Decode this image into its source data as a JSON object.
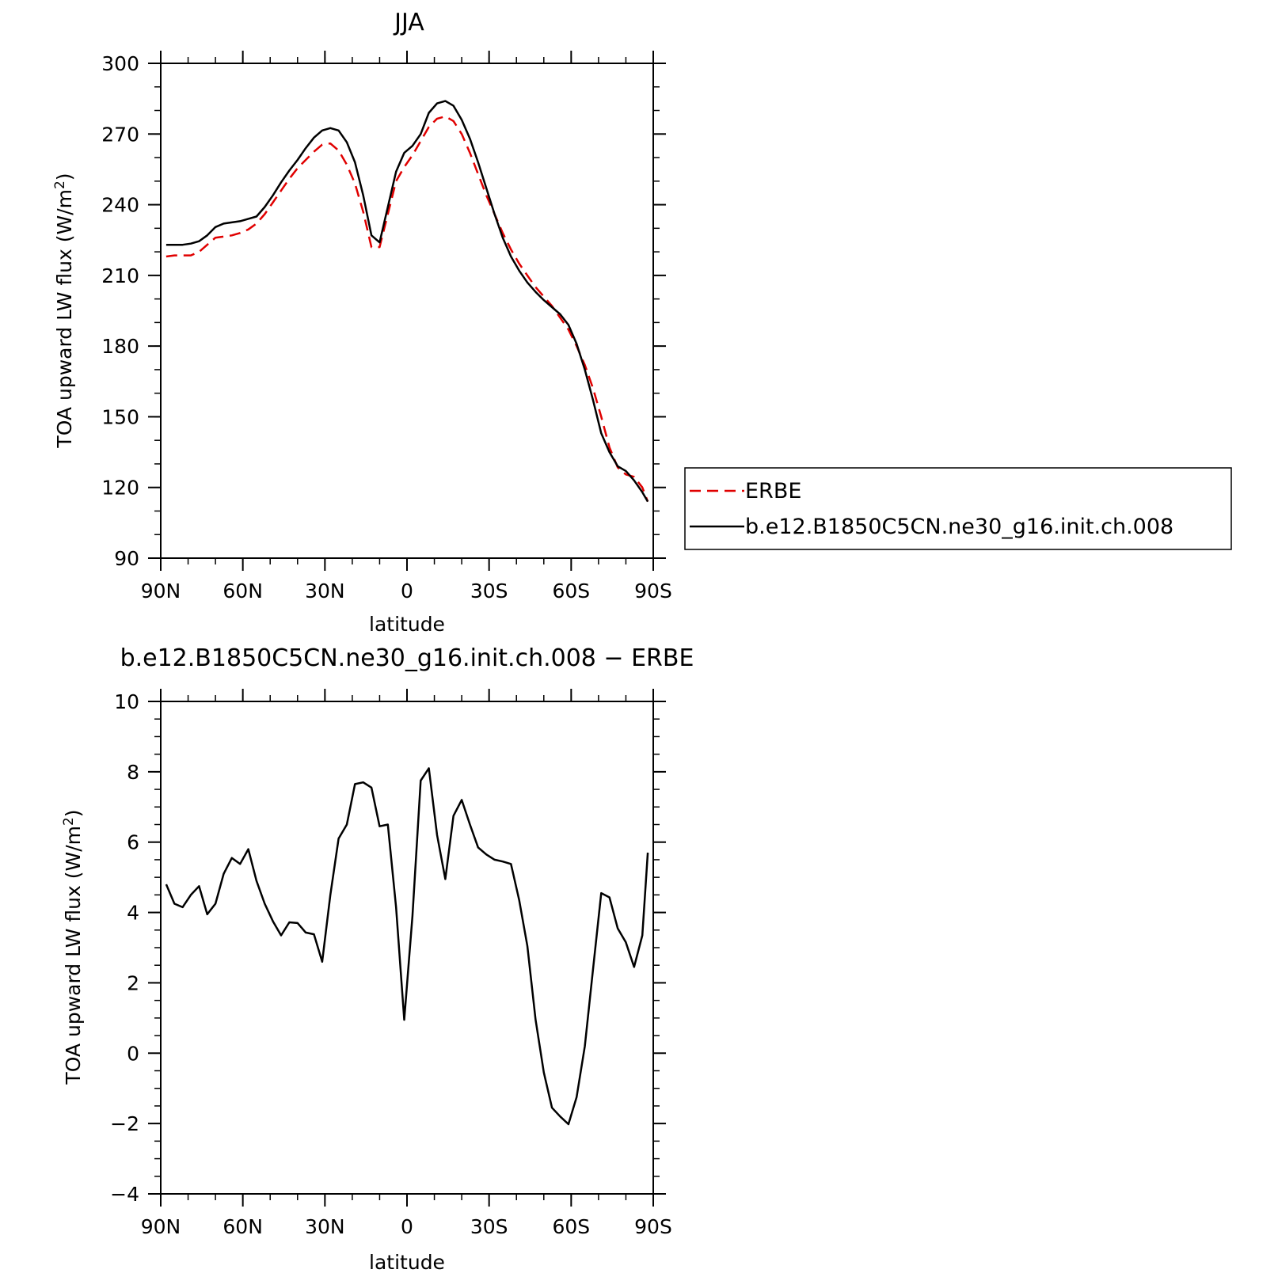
{
  "colors": {
    "erbe": "#e00000",
    "model": "#000000",
    "axis": "#000000"
  },
  "chart_data": [
    {
      "type": "line",
      "title": "JJA",
      "xlabel": "latitude",
      "ylabel": "TOA upward LW flux (W/m²)",
      "ylabel_main": "TOA upward LW flux (W/m",
      "ylabel_sup": "2",
      "ylabel_end": ")",
      "xlim": [
        90,
        -90
      ],
      "ylim": [
        90,
        300
      ],
      "x_ticks": [
        90,
        60,
        30,
        0,
        -30,
        -60,
        -90
      ],
      "x_tick_labels": [
        "90N",
        "60N",
        "30N",
        "0",
        "30S",
        "60S",
        "90S"
      ],
      "y_ticks": [
        90,
        120,
        150,
        180,
        210,
        240,
        270,
        300
      ],
      "y_tick_labels": [
        "90",
        "120",
        "150",
        "180",
        "210",
        "240",
        "270",
        "300"
      ],
      "legend_position": "right",
      "series": [
        {
          "name": "ERBE",
          "style": "dashed",
          "color": "#e00000",
          "x": [
            88,
            85,
            82,
            79,
            76,
            73,
            70,
            67,
            64,
            61,
            58,
            55,
            52,
            49,
            46,
            43,
            40,
            37,
            34,
            31,
            28,
            25,
            22,
            19,
            16,
            13,
            10,
            7,
            4,
            1,
            -2,
            -5,
            -8,
            -11,
            -14,
            -17,
            -20,
            -23,
            -26,
            -29,
            -32,
            -35,
            -38,
            -41,
            -44,
            -47,
            -50,
            -53,
            -56,
            -59,
            -62,
            -65,
            -68,
            -71,
            -74,
            -77,
            -80,
            -83,
            -86,
            -88
          ],
          "y": [
            218,
            218.5,
            218.5,
            218.5,
            220,
            223,
            226,
            226.5,
            227,
            228,
            229.5,
            232,
            236,
            241,
            246,
            251,
            255.5,
            259,
            262.5,
            265.5,
            266,
            263,
            257,
            249,
            237,
            222,
            222,
            236,
            250,
            256,
            261,
            267,
            273,
            276.5,
            277.5,
            275.5,
            270,
            262,
            253,
            244,
            236,
            228,
            221,
            215,
            210,
            205,
            201,
            197,
            192,
            187,
            180,
            172,
            162,
            150,
            137,
            128.5,
            125.5,
            124.5,
            120,
            114
          ]
        },
        {
          "name": "b.e12.B1850C5CN.ne30_g16.init.ch.008",
          "style": "solid",
          "color": "#000000",
          "x": [
            88,
            85,
            82,
            79,
            76,
            73,
            70,
            67,
            64,
            61,
            58,
            55,
            52,
            49,
            46,
            43,
            40,
            37,
            34,
            31,
            28,
            25,
            22,
            19,
            16,
            13,
            10,
            7,
            4,
            1,
            -2,
            -5,
            -8,
            -11,
            -14,
            -17,
            -20,
            -23,
            -26,
            -29,
            -32,
            -35,
            -38,
            -41,
            -44,
            -47,
            -50,
            -53,
            -56,
            -59,
            -62,
            -65,
            -68,
            -71,
            -74,
            -77,
            -80,
            -83,
            -86,
            -88
          ],
          "y": [
            223,
            223,
            223,
            223.5,
            224.5,
            227,
            230.5,
            232,
            232.5,
            233,
            234,
            235,
            239,
            244,
            249.5,
            254.5,
            259,
            264,
            268.5,
            271.5,
            272.5,
            271.5,
            266.5,
            258,
            244,
            227,
            224,
            239,
            254,
            262,
            265,
            270,
            279,
            283,
            284,
            282,
            276,
            268,
            258,
            247,
            236,
            226,
            218,
            212,
            207,
            203,
            199.5,
            196.5,
            193.5,
            189,
            181,
            170,
            157,
            143,
            135,
            129,
            127,
            123,
            118,
            114
          ]
        }
      ]
    },
    {
      "type": "line",
      "title": "b.e12.B1850C5CN.ne30_g16.init.ch.008 − ERBE",
      "xlabel": "latitude",
      "ylabel": "TOA upward LW flux (W/m²)",
      "ylabel_main": "TOA upward LW flux (W/m",
      "ylabel_sup": "2",
      "ylabel_end": ")",
      "xlim": [
        90,
        -90
      ],
      "ylim": [
        -4,
        10
      ],
      "x_ticks": [
        90,
        60,
        30,
        0,
        -30,
        -60,
        -90
      ],
      "x_tick_labels": [
        "90N",
        "60N",
        "30N",
        "0",
        "30S",
        "60S",
        "90S"
      ],
      "y_ticks": [
        -4,
        -2,
        0,
        2,
        4,
        6,
        8,
        10
      ],
      "y_tick_labels": [
        "−4",
        "−2",
        "0",
        "2",
        "4",
        "6",
        "8",
        "10"
      ],
      "series": [
        {
          "style": "solid",
          "color": "#000000",
          "x": [
            88,
            85,
            82,
            79,
            76,
            73,
            70,
            67,
            64,
            61,
            58,
            55,
            52,
            49,
            46,
            43,
            40,
            37,
            34,
            31,
            28,
            25,
            22,
            19,
            16,
            13,
            10,
            7,
            4,
            1,
            -2,
            -5,
            -8,
            -11,
            -14,
            -17,
            -20,
            -23,
            -26,
            -29,
            -32,
            -35,
            -38,
            -41,
            -44,
            -47,
            -50,
            -53,
            -56,
            -59,
            -62,
            -65,
            -68,
            -71,
            -74,
            -77,
            -80,
            -83,
            -86,
            -88
          ],
          "y": [
            4.8,
            4.25,
            4.15,
            4.5,
            4.75,
            3.95,
            4.25,
            5.1,
            5.55,
            5.38,
            5.8,
            4.9,
            4.25,
            3.75,
            3.35,
            3.72,
            3.7,
            3.43,
            3.38,
            2.6,
            4.5,
            6.1,
            6.5,
            7.65,
            7.7,
            7.55,
            6.45,
            6.5,
            4.15,
            0.95,
            3.9,
            7.75,
            8.1,
            6.2,
            4.95,
            6.75,
            7.2,
            6.5,
            5.85,
            5.65,
            5.5,
            5.45,
            5.38,
            4.35,
            3.05,
            0.95,
            -0.55,
            -1.55,
            -1.8,
            -2.02,
            -1.25,
            0.2,
            2.4,
            4.55,
            4.43,
            3.55,
            3.15,
            2.45,
            3.35,
            5.7
          ]
        }
      ]
    }
  ],
  "legend": {
    "items": [
      {
        "label": "ERBE",
        "style": "dashed",
        "color": "#e00000"
      },
      {
        "label": "b.e12.B1850C5CN.ne30_g16.init.ch.008",
        "style": "solid",
        "color": "#000000"
      }
    ]
  }
}
